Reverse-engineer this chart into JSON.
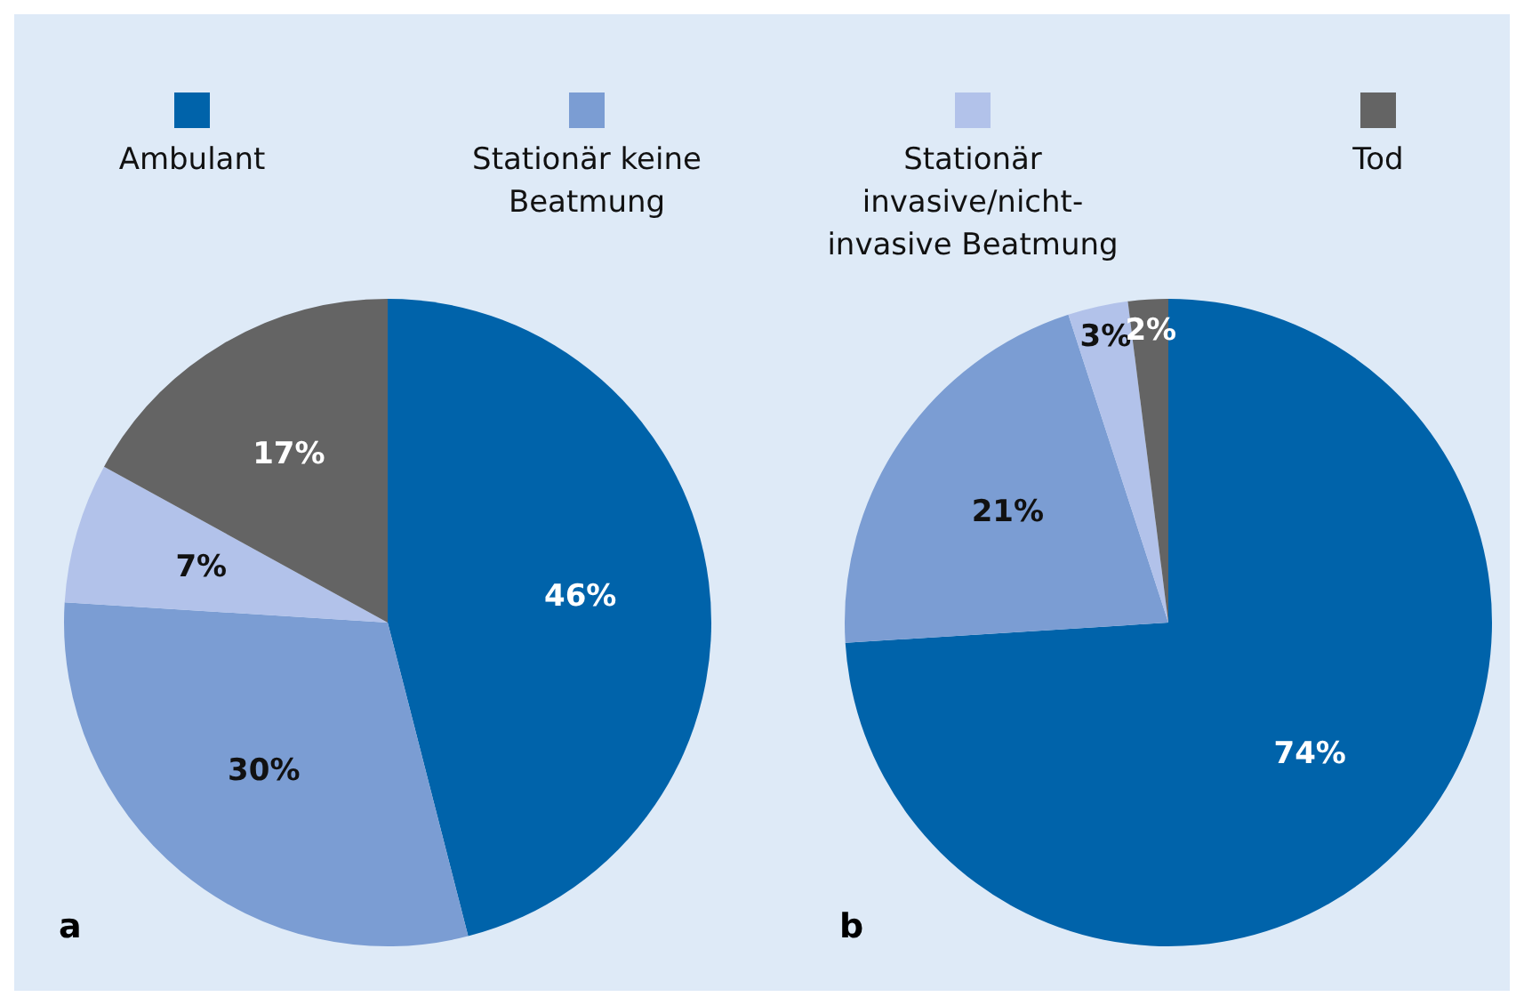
{
  "chart_data": [
    {
      "type": "pie",
      "categories": [
        "Ambulant",
        "Stationär keine Beatmung",
        "Stationär invasive/nicht-invasive Beatmung",
        "Tod"
      ],
      "values": [
        46,
        30,
        7,
        17
      ],
      "value_labels": [
        "46%",
        "30%",
        "7%",
        "17%"
      ],
      "colors": [
        "#0063aa",
        "#7b9dd3",
        "#b2c2ea",
        "#646464"
      ],
      "legend": "top",
      "annotations": [
        "a"
      ]
    },
    {
      "type": "pie",
      "categories": [
        null,
        null,
        null,
        null
      ],
      "values": [
        74,
        21,
        3,
        2
      ],
      "value_labels": [
        "74%",
        "21%",
        "3%",
        "2%"
      ],
      "colors": [
        "#0063aa",
        "#7b9dd3",
        "#b2c2ea",
        "#646464"
      ],
      "annotations": [
        "b"
      ]
    }
  ]
}
